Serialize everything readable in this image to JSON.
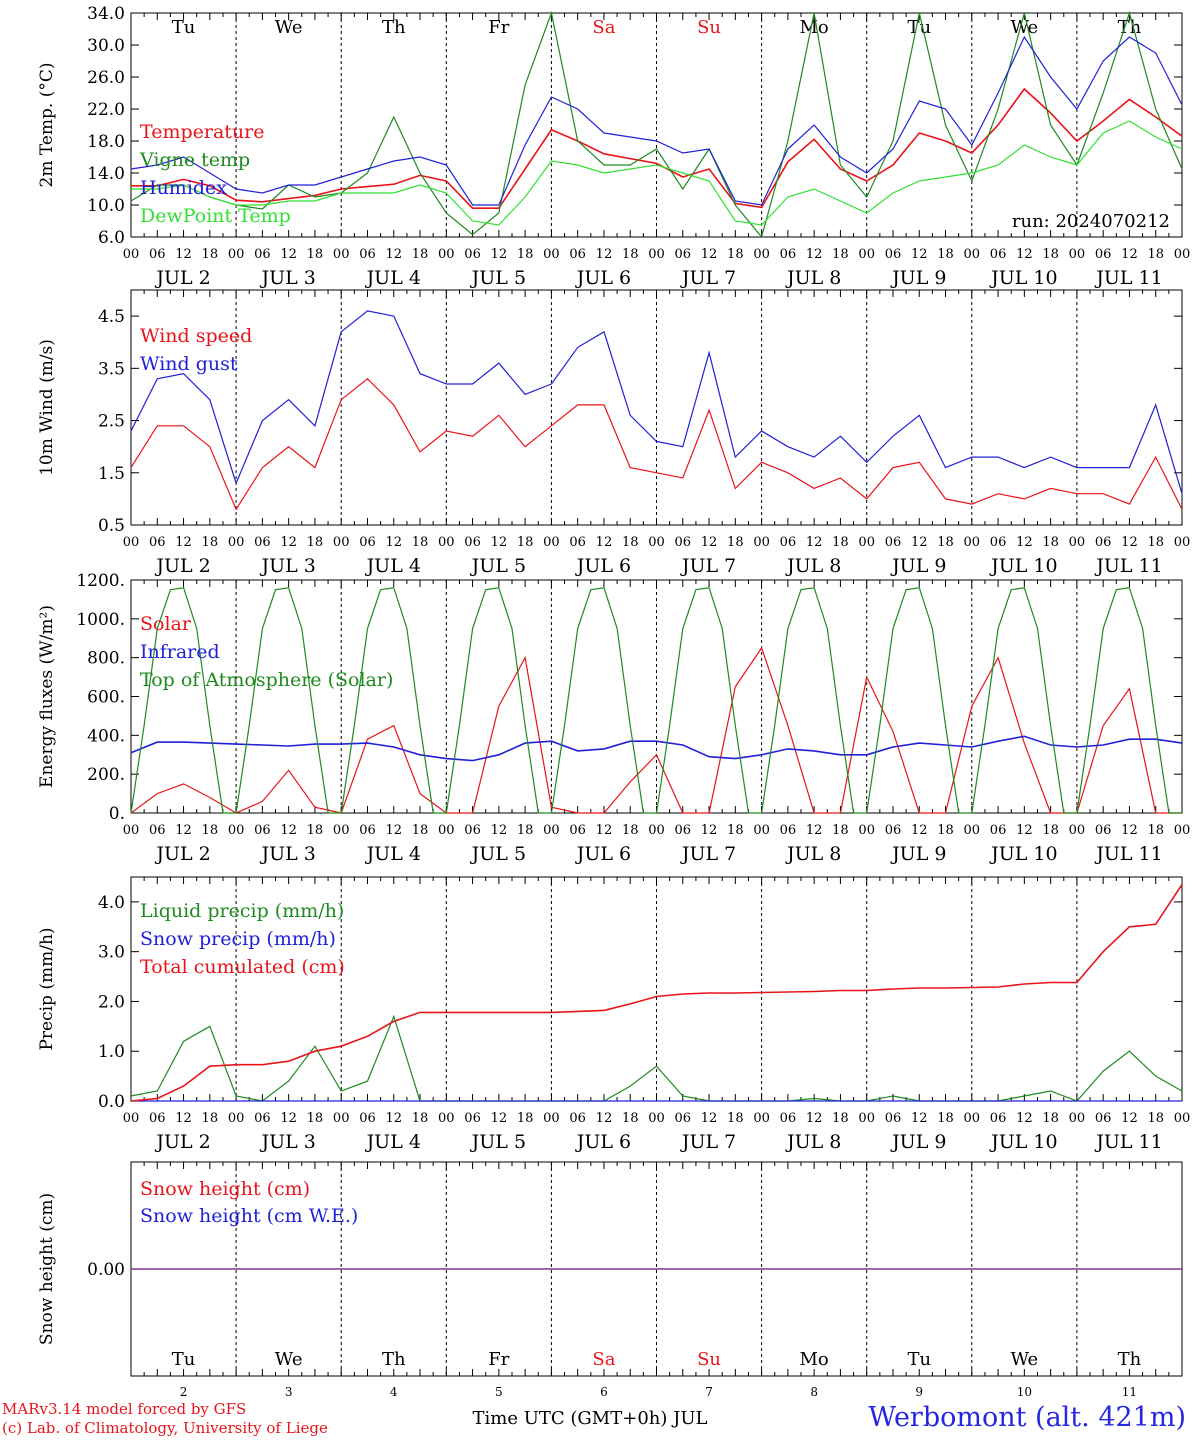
{
  "footer": {
    "credit_line_1": "MARv3.14 model forced by GFS",
    "credit_line_2": "(c) Lab. of Climatology, University of Liege",
    "station": "Werbomont (alt. 421m)",
    "xlabel": "Time UTC (GMT+0h) JUL"
  },
  "colors": {
    "red": "#e8141a",
    "blue": "#2020d8",
    "green": "#1f8a1f",
    "lightgreen": "#33e033",
    "purple": "#7b2a8c"
  },
  "days": {
    "weekday_labels": [
      "Tu",
      "We",
      "Th",
      "Fr",
      "Sa",
      "Su",
      "Mo",
      "Tu",
      "We",
      "Th"
    ],
    "weekend_days": [
      "Sa",
      "Su"
    ],
    "date_labels": [
      "JUL 2",
      "JUL 3",
      "JUL 4",
      "JUL 5",
      "JUL 6",
      "JUL 7",
      "JUL 8",
      "JUL 9",
      "JUL 10",
      "JUL 11"
    ],
    "bottom_day_numbers": [
      "2",
      "3",
      "4",
      "5",
      "6",
      "7",
      "8",
      "9",
      "10",
      "11"
    ],
    "hour_ticks": [
      "00",
      "06",
      "12",
      "18"
    ],
    "final_tick": "00"
  },
  "chart_data": [
    {
      "id": "temp",
      "type": "line",
      "ylabel": "2m Temp. (°C)",
      "ylim": [
        6,
        34
      ],
      "yticks": [
        "6.0",
        "10.0",
        "14.0",
        "18.0",
        "22.0",
        "26.0",
        "30.0",
        "34.0"
      ],
      "annotation": "run: 2024070212",
      "x_unit": "hours since JUL 2 00 UTC",
      "series": [
        {
          "name": "Temperature",
          "color": "red",
          "x": [
            0,
            6,
            12,
            18,
            24,
            30,
            36,
            42,
            48,
            54,
            60,
            66,
            72,
            78,
            84,
            90,
            96,
            102,
            108,
            114,
            120,
            126,
            132,
            138,
            144,
            150,
            156,
            162,
            168,
            174,
            180,
            186,
            192,
            198,
            204,
            210,
            216,
            222,
            228,
            234,
            240
          ],
          "y": [
            12.4,
            12.4,
            13.2,
            12.4,
            10.6,
            10.4,
            10.8,
            11.2,
            12.0,
            12.3,
            12.6,
            13.7,
            13.0,
            9.6,
            9.6,
            14.5,
            19.4,
            18.0,
            16.4,
            15.8,
            15.2,
            13.5,
            14.5,
            10.2,
            9.7,
            15.4,
            18.2,
            14.5,
            13.0,
            15.0,
            19.0,
            18.0,
            16.5,
            20.0,
            24.5,
            21.5,
            18.0,
            20.5,
            23.2,
            21.0,
            18.6
          ]
        },
        {
          "name": "Vigne temp",
          "color": "green",
          "x": [
            0,
            6,
            12,
            18,
            24,
            30,
            36,
            42,
            48,
            54,
            60,
            66,
            72,
            78,
            84,
            90,
            96,
            102,
            108,
            114,
            120,
            126,
            132,
            138,
            144,
            150,
            156,
            162,
            168,
            174,
            180,
            186,
            192,
            198,
            204,
            210,
            216,
            222,
            228,
            234,
            240
          ],
          "y": [
            10.5,
            12.5,
            12.5,
            11.0,
            10.0,
            9.5,
            12.5,
            11.0,
            11.5,
            14.0,
            21.0,
            14.0,
            9.0,
            6.3,
            9.0,
            25.0,
            34.0,
            18.0,
            15.0,
            15.0,
            17.0,
            12.0,
            17.0,
            10.0,
            6.0,
            18.0,
            34.0,
            15.0,
            11.0,
            18.0,
            34.0,
            20.0,
            13.0,
            22.0,
            35.0,
            20.0,
            15.0,
            24.0,
            35.0,
            22.0,
            14.5
          ]
        },
        {
          "name": "Humidex",
          "color": "blue",
          "x": [
            0,
            6,
            12,
            18,
            24,
            30,
            36,
            42,
            48,
            54,
            60,
            66,
            72,
            78,
            84,
            90,
            96,
            102,
            108,
            114,
            120,
            126,
            132,
            138,
            144,
            150,
            156,
            162,
            168,
            174,
            180,
            186,
            192,
            198,
            204,
            210,
            216,
            222,
            228,
            234,
            240
          ],
          "y": [
            14.5,
            15.0,
            16.0,
            14.0,
            12.0,
            11.5,
            12.5,
            12.5,
            13.5,
            14.5,
            15.5,
            16.0,
            15.0,
            10.0,
            10.0,
            17.5,
            23.5,
            22.0,
            19.0,
            18.5,
            18.0,
            16.5,
            17.0,
            10.5,
            10.0,
            17.0,
            20.0,
            16.0,
            14.0,
            17.0,
            23.0,
            22.0,
            17.5,
            24.0,
            31.0,
            26.0,
            22.0,
            28.0,
            31.0,
            29.0,
            22.5
          ]
        },
        {
          "name": "DewPoint Temp",
          "color": "lightgreen",
          "x": [
            0,
            6,
            12,
            18,
            24,
            30,
            36,
            42,
            48,
            54,
            60,
            66,
            72,
            78,
            84,
            90,
            96,
            102,
            108,
            114,
            120,
            126,
            132,
            138,
            144,
            150,
            156,
            162,
            168,
            174,
            180,
            186,
            192,
            198,
            204,
            210,
            216,
            222,
            228,
            234,
            240
          ],
          "y": [
            12.0,
            12.0,
            12.5,
            11.0,
            10.0,
            10.0,
            10.5,
            10.5,
            11.5,
            11.5,
            11.5,
            12.5,
            11.5,
            8.0,
            7.5,
            11.0,
            15.5,
            15.0,
            14.0,
            14.5,
            15.0,
            14.0,
            13.0,
            8.0,
            7.5,
            11.0,
            12.0,
            10.5,
            9.0,
            11.5,
            13.0,
            13.5,
            14.0,
            15.0,
            17.5,
            16.0,
            15.0,
            19.0,
            20.5,
            18.5,
            17.0
          ]
        }
      ]
    },
    {
      "id": "wind",
      "type": "line",
      "ylabel": "10m Wind (m/s)",
      "ylim": [
        0.5,
        5.0
      ],
      "yticks": [
        "0.5",
        "1.5",
        "2.5",
        "3.5",
        "4.5"
      ],
      "x_unit": "hours since JUL 2 00 UTC",
      "series": [
        {
          "name": "Wind speed",
          "color": "red",
          "x": [
            0,
            6,
            12,
            18,
            24,
            30,
            36,
            42,
            48,
            54,
            60,
            66,
            72,
            78,
            84,
            90,
            96,
            102,
            108,
            114,
            120,
            126,
            132,
            138,
            144,
            150,
            156,
            162,
            168,
            174,
            180,
            186,
            192,
            198,
            204,
            210,
            216,
            222,
            228,
            234,
            240
          ],
          "y": [
            1.6,
            2.4,
            2.4,
            2.0,
            0.8,
            1.6,
            2.0,
            1.6,
            2.9,
            3.3,
            2.8,
            1.9,
            2.3,
            2.2,
            2.6,
            2.0,
            2.4,
            2.8,
            2.8,
            1.6,
            1.5,
            1.4,
            2.7,
            1.2,
            1.7,
            1.5,
            1.2,
            1.4,
            1.0,
            1.6,
            1.7,
            1.0,
            0.9,
            1.1,
            1.0,
            1.2,
            1.1,
            1.1,
            0.9,
            1.8,
            0.8
          ]
        },
        {
          "name": "Wind gust",
          "color": "blue",
          "x": [
            0,
            6,
            12,
            18,
            24,
            30,
            36,
            42,
            48,
            54,
            60,
            66,
            72,
            78,
            84,
            90,
            96,
            102,
            108,
            114,
            120,
            126,
            132,
            138,
            144,
            150,
            156,
            162,
            168,
            174,
            180,
            186,
            192,
            198,
            204,
            210,
            216,
            222,
            228,
            234,
            240
          ],
          "y": [
            2.3,
            3.3,
            3.4,
            2.9,
            1.3,
            2.5,
            2.9,
            2.4,
            4.2,
            4.6,
            4.5,
            3.4,
            3.2,
            3.2,
            3.6,
            3.0,
            3.2,
            3.9,
            4.2,
            2.6,
            2.1,
            2.0,
            3.8,
            1.8,
            2.3,
            2.0,
            1.8,
            2.2,
            1.7,
            2.2,
            2.6,
            1.6,
            1.8,
            1.8,
            1.6,
            1.8,
            1.6,
            1.6,
            1.6,
            2.8,
            1.1
          ]
        }
      ]
    },
    {
      "id": "energy",
      "type": "line",
      "ylabel": "Energy fluxes (W/m²)",
      "ylim": [
        0,
        1200
      ],
      "yticks": [
        "0.",
        "200.",
        "400.",
        "600.",
        "800.",
        "1000.",
        "1200."
      ],
      "x_unit": "hours since JUL 2 00 UTC",
      "series": [
        {
          "name": "Solar",
          "color": "red",
          "x": [
            0,
            6,
            12,
            18,
            24,
            30,
            36,
            42,
            48,
            54,
            60,
            66,
            72,
            78,
            84,
            90,
            96,
            102,
            108,
            114,
            120,
            126,
            132,
            138,
            144,
            150,
            156,
            162,
            168,
            174,
            180,
            186,
            192,
            198,
            204,
            210,
            216,
            222,
            228,
            234,
            240
          ],
          "y": [
            0,
            100,
            150,
            80,
            0,
            60,
            220,
            30,
            0,
            380,
            450,
            100,
            0,
            0,
            550,
            800,
            30,
            0,
            0,
            160,
            300,
            0,
            0,
            650,
            850,
            450,
            0,
            0,
            700,
            420,
            0,
            0,
            550,
            800,
            360,
            0,
            0,
            450,
            640,
            0,
            0
          ]
        },
        {
          "name": "Infrared",
          "color": "blue",
          "x": [
            0,
            6,
            12,
            18,
            24,
            30,
            36,
            42,
            48,
            54,
            60,
            66,
            72,
            78,
            84,
            90,
            96,
            102,
            108,
            114,
            120,
            126,
            132,
            138,
            144,
            150,
            156,
            162,
            168,
            174,
            180,
            186,
            192,
            198,
            204,
            210,
            216,
            222,
            228,
            234,
            240
          ],
          "y": [
            310,
            365,
            365,
            360,
            355,
            350,
            345,
            355,
            355,
            360,
            340,
            300,
            280,
            270,
            300,
            360,
            370,
            320,
            330,
            370,
            370,
            350,
            290,
            280,
            300,
            330,
            320,
            300,
            300,
            340,
            360,
            350,
            340,
            370,
            395,
            350,
            340,
            350,
            380,
            380,
            360
          ]
        },
        {
          "name": "Top of Atmosphere (Solar)",
          "color": "green",
          "x": [
            0,
            3,
            6,
            9,
            12,
            15,
            18,
            21,
            24
          ],
          "y": [
            0,
            450,
            950,
            1150,
            1160,
            950,
            450,
            0,
            0
          ],
          "periodic_hours": 24
        }
      ]
    },
    {
      "id": "precip",
      "type": "line",
      "ylabel": "Precip (mm/h)",
      "ylim": [
        0,
        4.5
      ],
      "yticks": [
        "0.0",
        "1.0",
        "2.0",
        "3.0",
        "4.0"
      ],
      "x_unit": "hours since JUL 2 00 UTC",
      "series": [
        {
          "name": "Liquid precip (mm/h)",
          "color": "green",
          "x": [
            0,
            6,
            12,
            18,
            24,
            30,
            36,
            42,
            48,
            54,
            60,
            66,
            72,
            78,
            84,
            90,
            96,
            102,
            108,
            114,
            120,
            126,
            132,
            138,
            144,
            150,
            156,
            162,
            168,
            174,
            180,
            186,
            192,
            198,
            204,
            210,
            216,
            222,
            228,
            234,
            240
          ],
          "y": [
            0.1,
            0.2,
            1.2,
            1.5,
            0.1,
            0,
            0.4,
            1.1,
            0.2,
            0.4,
            1.7,
            0,
            0,
            0,
            0,
            0,
            0,
            0,
            0,
            0.3,
            0.7,
            0.1,
            0,
            0,
            0,
            0,
            0.05,
            0,
            0,
            0.1,
            0,
            0,
            0,
            0,
            0.1,
            0.2,
            0,
            0.6,
            1.0,
            0.5,
            0.2
          ]
        },
        {
          "name": "Snow precip (mm/h)",
          "color": "blue",
          "x": [
            0,
            240
          ],
          "y": [
            0,
            0
          ]
        },
        {
          "name": "Total cumulated (cm)",
          "color": "red",
          "x": [
            0,
            6,
            12,
            18,
            24,
            30,
            36,
            42,
            48,
            54,
            60,
            66,
            72,
            78,
            84,
            90,
            96,
            102,
            108,
            114,
            120,
            126,
            132,
            138,
            144,
            150,
            156,
            162,
            168,
            174,
            180,
            186,
            192,
            198,
            204,
            210,
            216,
            222,
            228,
            234,
            240
          ],
          "y": [
            0,
            0.05,
            0.3,
            0.7,
            0.73,
            0.73,
            0.8,
            1.0,
            1.1,
            1.3,
            1.6,
            1.78,
            1.78,
            1.78,
            1.78,
            1.78,
            1.78,
            1.8,
            1.82,
            1.95,
            2.1,
            2.15,
            2.17,
            2.17,
            2.18,
            2.19,
            2.2,
            2.22,
            2.22,
            2.25,
            2.27,
            2.27,
            2.28,
            2.29,
            2.35,
            2.38,
            2.38,
            3.0,
            3.5,
            3.55,
            4.35
          ]
        }
      ]
    },
    {
      "id": "snow",
      "type": "line",
      "ylabel": "Snow height (cm)",
      "ylim": [
        -1,
        1
      ],
      "yticks": [
        "0.00"
      ],
      "x_unit": "hours since JUL 2 00 UTC",
      "series": [
        {
          "name": "Snow height (cm)",
          "color": "red",
          "x": [
            0,
            240
          ],
          "y": [
            0,
            0
          ]
        },
        {
          "name": "Snow height (cm W.E.)",
          "color": "blue",
          "x": [
            0,
            240
          ],
          "y": [
            0,
            0
          ]
        }
      ]
    }
  ]
}
